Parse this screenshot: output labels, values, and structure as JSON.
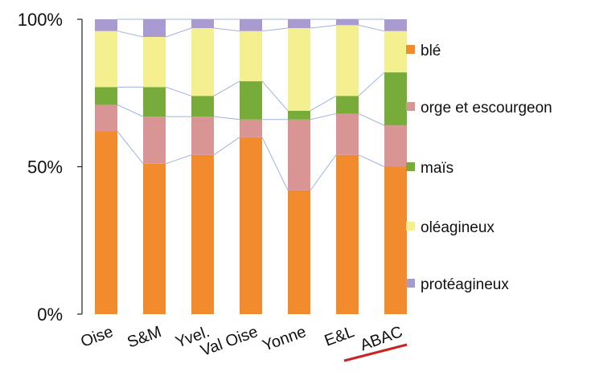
{
  "chart_data": {
    "type": "bar",
    "stacked": true,
    "normalized": true,
    "categories": [
      "Oise",
      "S&M",
      "Yvel.",
      "Val Oise",
      "Yonne",
      "E&L",
      "ABAC"
    ],
    "yticks": [
      "0%",
      "50%",
      "100%"
    ],
    "ylim": [
      0,
      100
    ],
    "series": [
      {
        "name": "blé",
        "color": "#f28a2e",
        "values": [
          62,
          51,
          54,
          60,
          42,
          54,
          50
        ]
      },
      {
        "name": "orge et escourgeon",
        "color": "#d99594",
        "values": [
          9,
          16,
          13,
          6,
          24,
          14,
          14
        ]
      },
      {
        "name": "maïs",
        "color": "#77ac3a",
        "values": [
          6,
          10,
          7,
          13,
          3,
          6,
          18
        ]
      },
      {
        "name": "oléagineux",
        "color": "#f5f08f",
        "values": [
          19,
          17,
          23,
          17,
          28,
          24,
          14
        ]
      },
      {
        "name": "protéagineux",
        "color": "#a99bd1",
        "values": [
          4,
          6,
          3,
          4,
          3,
          2,
          4
        ]
      }
    ],
    "legend_position": "right",
    "connector_lines": true,
    "connector_color": "#9fb3e0",
    "highlight_category": "ABAC",
    "highlight_color": "#cc2222"
  }
}
